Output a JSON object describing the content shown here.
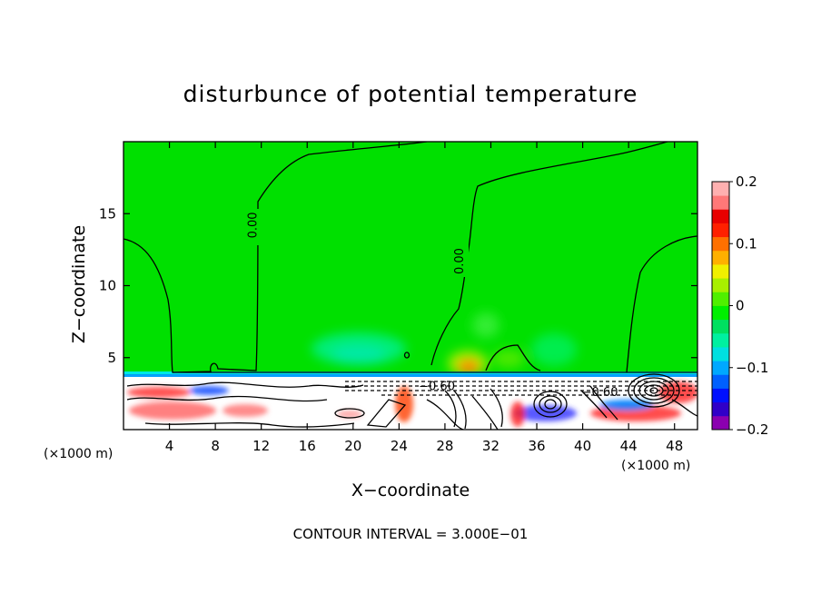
{
  "chart_data": {
    "type": "heatmap",
    "title": "disturbunce of potential temperature",
    "xlabel": "X−coordinate",
    "ylabel": "Z−coordinate",
    "x_unit": "(×1000 m)",
    "x_unit_right": "(×1000 m)",
    "xlim": [
      0,
      50
    ],
    "ylim": [
      0,
      20
    ],
    "x_ticks": [
      4,
      8,
      12,
      16,
      20,
      24,
      28,
      32,
      36,
      40,
      44,
      48
    ],
    "y_ticks": [
      5,
      10,
      15
    ],
    "colorbar": {
      "range": [
        -0.2,
        0.2
      ],
      "tick_values": [
        0.2,
        0.1,
        0,
        -0.1,
        -0.2
      ],
      "tick_labels": [
        "0.2",
        "0.1",
        "0",
        "−0.1",
        "−0.2"
      ],
      "colors": [
        "#8b00b0",
        "#3000c8",
        "#0010ff",
        "#0060ff",
        "#00a8ff",
        "#00e0e0",
        "#00f0a0",
        "#00e060",
        "#00f000",
        "#50f000",
        "#a8f000",
        "#f0f000",
        "#ffb000",
        "#ff7000",
        "#ff2000",
        "#e80000",
        "#ff7878",
        "#ffb0b0"
      ]
    },
    "contour_labels": [
      {
        "text": "0.00",
        "x": 11.2,
        "y": 14.2
      },
      {
        "text": "0.00",
        "x": 29.2,
        "y": 11.7
      },
      {
        "text": "−0.60",
        "x": 27.3,
        "y": 3.0
      },
      {
        "text": "−0.60",
        "x": 41.5,
        "y": 2.6
      }
    ],
    "contour_interval_text": "CONTOUR INTERVAL = 3.000E−01",
    "background_value": 0
  }
}
